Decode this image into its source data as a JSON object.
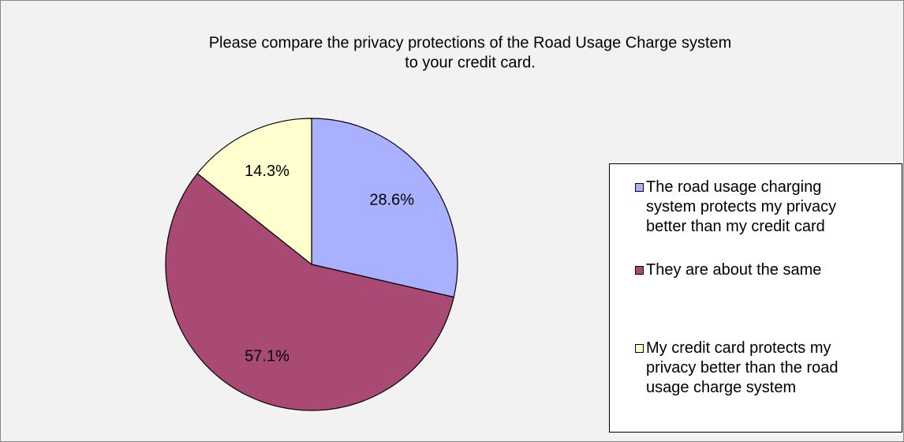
{
  "chart_data": {
    "type": "pie",
    "title": [
      "Please compare the privacy protections of the Road Usage Charge system",
      "to your credit card."
    ],
    "categories": [
      "The road usage charging system protects my privacy better than my credit card",
      "They are about the same",
      "My credit card protects my privacy better than the road usage charge system"
    ],
    "values": [
      28.6,
      57.1,
      14.3
    ],
    "value_labels": [
      "28.6%",
      "57.1%",
      "14.3%"
    ],
    "colors": [
      "#a9b0ff",
      "#a84a74",
      "#ffffd0"
    ],
    "legend": "right"
  }
}
